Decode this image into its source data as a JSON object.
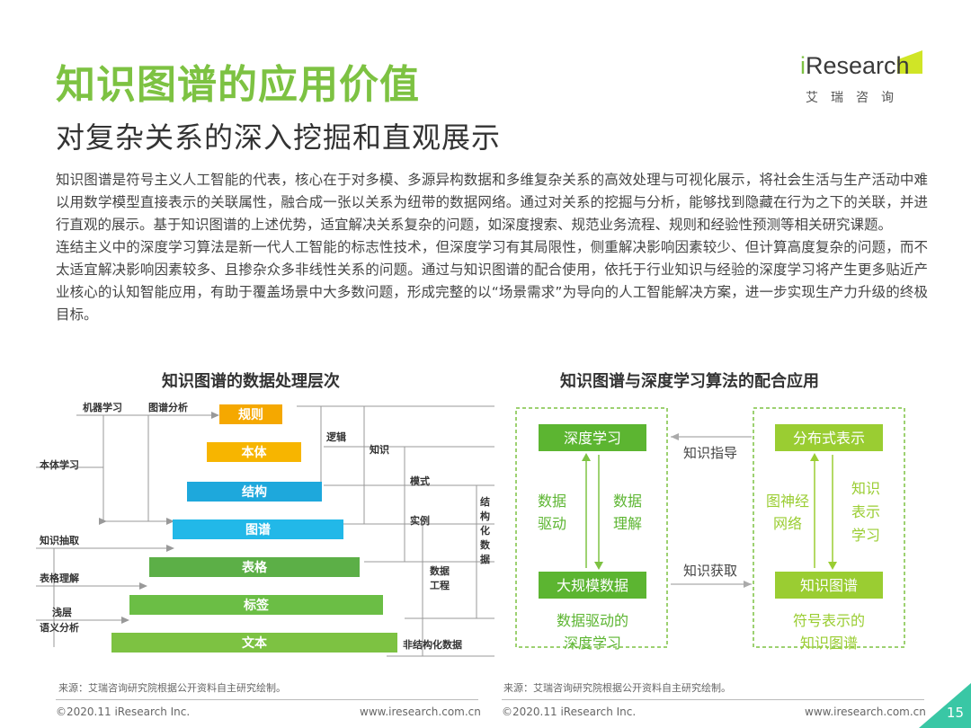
{
  "header": {
    "title": "知识图谱的应用价值",
    "subtitle": "对复杂关系的深入挖掘和直观展示",
    "logo_brand_i": "i",
    "logo_brand_rest": "Research",
    "logo_sub": "艾瑞咨询"
  },
  "body": {
    "para1": "知识图谱是符号主义人工智能的代表，核心在于对多模、多源异构数据和多维复杂关系的高效处理与可视化展示，将社会生活与生产活动中难以用数学模型直接表示的关联属性，融合成一张以关系为纽带的数据网络。通过对关系的挖掘与分析，能够找到隐藏在行为之下的关联，并进行直观的展示。基于知识图谱的上述优势，适宜解决关系复杂的问题，如深度搜索、规范业务流程、规则和经验性预测等相关研究课题。",
    "para2": "连结主义中的深度学习算法是新一代人工智能的标志性技术，但深度学习有其局限性，侧重解决影响因素较少、但计算高度复杂的问题，而不太适宜解决影响因素较多、且掺杂众多非线性关系的问题。通过与知识图谱的配合使用，依托于行业知识与经验的深度学习将产生更多贴近产业核心的认知智能应用，有助于覆盖场景中大多数问题，形成完整的以“场景需求”为导向的人工智能解决方案，进一步实现生产力升级的终极目标。"
  },
  "left_panel": {
    "title": "知识图谱的数据处理层次",
    "layers": [
      "规则",
      "本体",
      "结构",
      "图谱",
      "表格",
      "标签",
      "文本"
    ],
    "layer_colors": [
      "#F5A800",
      "#F7B500",
      "#1EA8DC",
      "#22B8E8",
      "#5CAF47",
      "#6BBE45",
      "#7DC242"
    ],
    "left_labels": [
      "机器学习",
      "图谱分析",
      "本体学习",
      "知识抽取",
      "表格理解",
      "浅层",
      "语义分析"
    ],
    "mid_labels": [
      "逻辑",
      "知识",
      "模式",
      "实例",
      "数据",
      "工程"
    ],
    "right_label_chars": [
      "结",
      "构",
      "化",
      "数",
      "据"
    ],
    "bottom_right_label": "非结构化数据"
  },
  "right_panel": {
    "title": "知识图谱与深度学习算法的配合应用",
    "dl_box": "深度学习",
    "big_data_box": "大规模数据",
    "data_drive": [
      "数据",
      "驱动"
    ],
    "data_understand": [
      "数据",
      "理解"
    ],
    "left_caption": [
      "数据驱动的",
      "深度学习"
    ],
    "distributed_box": "分布式表示",
    "kg_box": "知识图谱",
    "graph_nn": [
      "图神经",
      "网络"
    ],
    "knowledge_repr": [
      "知识",
      "表示",
      "学习"
    ],
    "right_caption": [
      "符号表示的",
      "知识图谱"
    ],
    "guide_label": "知识指导",
    "acquire_label": "知识获取"
  },
  "footer": {
    "source_left": "来源：艾瑞咨询研究院根据公开资料自主研究绘制。",
    "source_right": "来源：艾瑞咨询研究院根据公开资料自主研究绘制。",
    "copyright_left": "©2020.11 iResearch Inc.",
    "url_left": "www.iresearch.com.cn",
    "copyright_right": "©2020.11 iResearch Inc.",
    "url_right": "www.iresearch.com.cn",
    "page_number": "15"
  },
  "colors": {
    "accent_green": "#7DC242",
    "box_green": "#5CB531",
    "page_teal": "#39C7A5"
  }
}
